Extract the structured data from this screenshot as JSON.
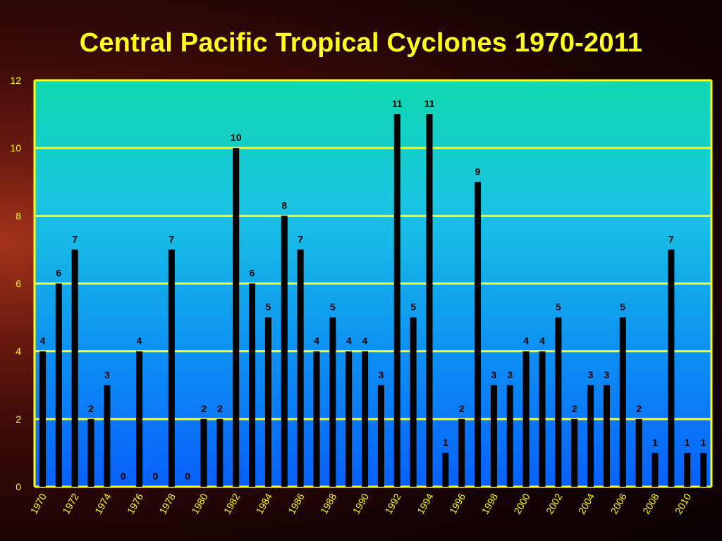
{
  "title": "Central Pacific Tropical Cyclones 1970-2011",
  "colors": {
    "title": "#ffff1a",
    "gridline": "#ffff1a",
    "bar": "#000000",
    "plot_top": "#10d6b0",
    "plot_bottom": "#0a6dfb"
  },
  "chart_data": {
    "type": "bar",
    "title": "Central Pacific Tropical Cyclones 1970-2011",
    "xlabel": "",
    "ylabel": "",
    "ylim": [
      0,
      12
    ],
    "yticks": [
      0,
      2,
      4,
      6,
      8,
      10,
      12
    ],
    "grid": true,
    "legend": "none",
    "categories": [
      "1970",
      "1971",
      "1972",
      "1973",
      "1974",
      "1975",
      "1976",
      "1977",
      "1978",
      "1979",
      "1980",
      "1981",
      "1982",
      "1983",
      "1984",
      "1985",
      "1986",
      "1987",
      "1988",
      "1989",
      "1990",
      "1991",
      "1992",
      "1993",
      "1994",
      "1995",
      "1996",
      "1997",
      "1998",
      "1999",
      "2000",
      "2001",
      "2002",
      "2003",
      "2004",
      "2005",
      "2006",
      "2007",
      "2008",
      "2009",
      "2010",
      "2011"
    ],
    "xtick_labels": [
      "1970",
      "1972",
      "1974",
      "1976",
      "1978",
      "1980",
      "1982",
      "1984",
      "1986",
      "1988",
      "1990",
      "1992",
      "1994",
      "1996",
      "1998",
      "2000",
      "2002",
      "2004",
      "2006",
      "2008",
      "2010"
    ],
    "values": [
      4,
      6,
      7,
      2,
      3,
      0,
      4,
      0,
      7,
      0,
      2,
      2,
      10,
      6,
      5,
      8,
      7,
      4,
      5,
      4,
      4,
      3,
      11,
      5,
      11,
      1,
      2,
      9,
      3,
      3,
      4,
      4,
      5,
      2,
      3,
      3,
      5,
      2,
      1,
      7,
      1,
      1
    ]
  }
}
